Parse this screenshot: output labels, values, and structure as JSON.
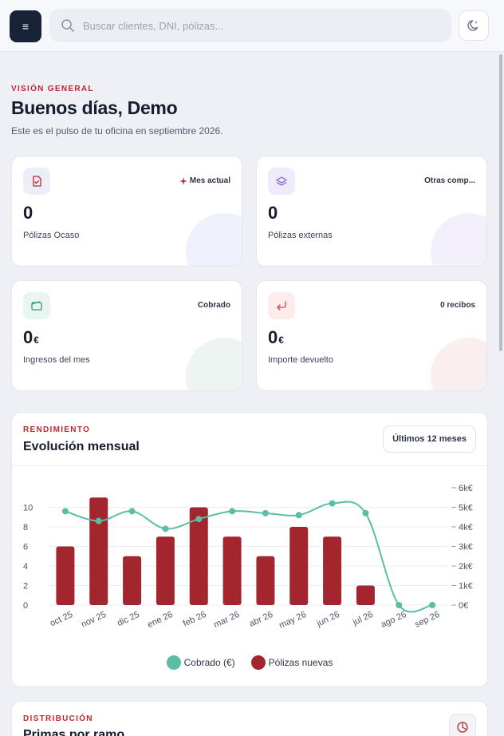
{
  "topbar": {
    "menu_icon": "≡",
    "search_placeholder": "Buscar clientes, DNI, pólizas..."
  },
  "hero": {
    "eyebrow": "VISIÓN GENERAL",
    "title": "Buenos días, Demo",
    "subtitle": "Este es el pulso de tu oficina en septiembre 2026."
  },
  "stats": [
    {
      "icon": "document-check-icon",
      "tag": "Mes actual",
      "tag_icon": "sparkle-icon",
      "value": "0",
      "unit": "",
      "label": "Pólizas Ocaso",
      "accent": "#c0262d",
      "icon_bg": "#eceef8",
      "blob": "#eef0fb"
    },
    {
      "icon": "layers-icon",
      "tag": "Otras comp...",
      "value": "0",
      "unit": "",
      "label": "Pólizas externas",
      "accent": "#7c5cd6",
      "icon_bg": "#efebfb",
      "blob": "#f3f0fc"
    },
    {
      "icon": "wallet-icon",
      "tag": "Cobrado",
      "value": "0",
      "unit": "€",
      "label": "Ingresos del mes",
      "accent": "#2f9c77",
      "icon_bg": "#e9f5f0",
      "blob": "#eef4f1"
    },
    {
      "icon": "return-arrow-icon",
      "tag": "0 recibos",
      "value": "0",
      "unit": "€",
      "label": "Importe devuelto",
      "accent": "#d0444b",
      "icon_bg": "#fcecec",
      "blob": "#fbeeee"
    }
  ],
  "performance": {
    "eyebrow": "RENDIMIENTO",
    "title": "Evolución mensual",
    "range_label": "Últimos 12 meses"
  },
  "distribution": {
    "eyebrow": "DISTRIBUCIÓN",
    "title": "Primas por ramo",
    "icon": "pie-chart-icon"
  },
  "colors": {
    "bar": "#a3262e",
    "line": "#5bbda5",
    "accent": "#c0262d",
    "dark": "#182338"
  },
  "chart_data": {
    "type": "bar",
    "categories": [
      "oct 25",
      "nov 25",
      "dic 25",
      "ene 26",
      "feb 26",
      "mar 26",
      "abr 26",
      "may 26",
      "jun 26",
      "jul 26",
      "ago 26",
      "sep 26"
    ],
    "series": [
      {
        "name": "Pólizas nuevas",
        "type": "bar",
        "axis": "left",
        "values": [
          6,
          11,
          5,
          7,
          10,
          7,
          5,
          8,
          7,
          2,
          0,
          0
        ]
      },
      {
        "name": "Cobrado (€)",
        "type": "line",
        "axis": "right",
        "values": [
          4800,
          4300,
          4800,
          3900,
          4400,
          4800,
          4700,
          4600,
          5200,
          4700,
          0,
          0
        ]
      }
    ],
    "left_axis": {
      "ticks": [
        "0",
        "2",
        "4",
        "6",
        "8",
        "10"
      ],
      "ylim": [
        0,
        12
      ]
    },
    "right_axis": {
      "ticks": [
        "0€",
        "1k€",
        "2k€",
        "3k€",
        "4k€",
        "5k€",
        "6k€"
      ],
      "ylim": [
        0,
        6000
      ]
    },
    "legend": [
      "Cobrado (€)",
      "Pólizas nuevas"
    ],
    "grid": true,
    "legend_position": "bottom"
  }
}
